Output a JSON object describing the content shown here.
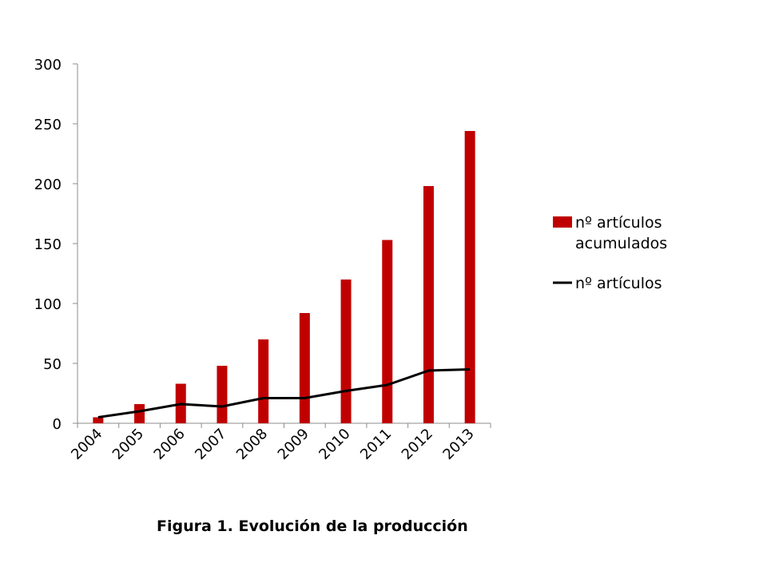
{
  "caption": "Figura 1. Evolución de la producción",
  "chart_data": {
    "type": "bar",
    "categories": [
      "2004",
      "2005",
      "2006",
      "2007",
      "2008",
      "2009",
      "2010",
      "2011",
      "2012",
      "2013"
    ],
    "ylim": [
      0,
      300
    ],
    "yticks": [
      0,
      50,
      100,
      150,
      200,
      250,
      300
    ],
    "grid": false,
    "legend_position": "right",
    "series": [
      {
        "name": "nº artículos acumulados",
        "legend_lines": [
          "nº artículos",
          "acumulados"
        ],
        "kind": "bar",
        "color": "#c00000",
        "values": [
          5,
          16,
          33,
          48,
          70,
          92,
          120,
          153,
          198,
          244
        ]
      },
      {
        "name": "nº artículos",
        "legend_lines": [
          "nº artículos"
        ],
        "kind": "line",
        "color": "#000000",
        "values": [
          5,
          10,
          16,
          14,
          21,
          21,
          27,
          32,
          44,
          45
        ]
      }
    ]
  }
}
